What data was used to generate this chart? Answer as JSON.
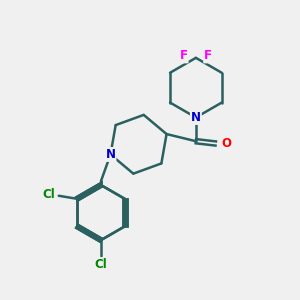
{
  "background_color": "#f0f0f0",
  "atom_colors": {
    "N": "#0000cc",
    "O": "#ff0000",
    "F": "#ff00ff",
    "Cl": "#008800",
    "C": "#000000"
  },
  "bond_color": "#2a6060",
  "bond_width": 1.8,
  "figsize": [
    3.0,
    3.0
  ],
  "dpi": 100
}
